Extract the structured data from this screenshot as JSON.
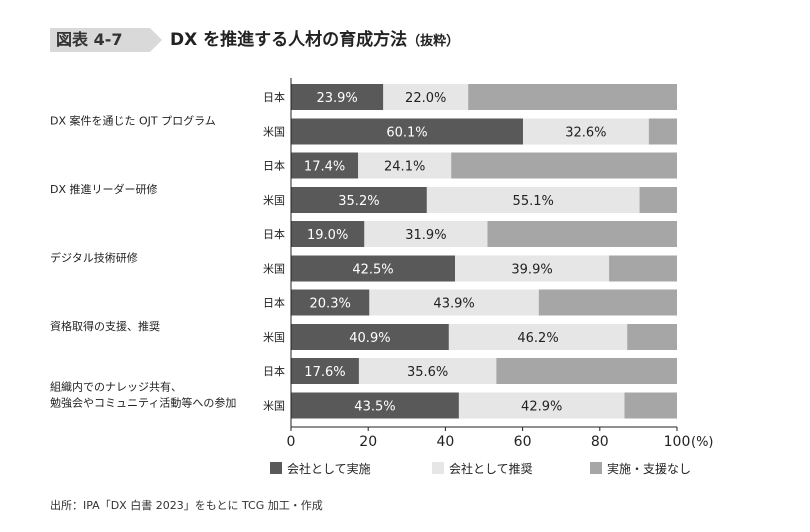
{
  "header": {
    "figure_label": "図表 4-7",
    "title": "DX を推進する人材の育成方法",
    "title_sub": "（抜粋）"
  },
  "chart_data": {
    "type": "bar",
    "orientation": "horizontal",
    "stacked": true,
    "xlim": [
      0,
      100
    ],
    "xticks": [
      "0",
      "20",
      "40",
      "60",
      "80",
      "100"
    ],
    "x_unit": "(%)",
    "grid": false,
    "legend_position": "bottom",
    "categories": [
      "DX 案件を通じた OJT プログラム",
      "DX 推進リーダー研修",
      "デジタル技術研修",
      "資格取得の支援、推奨",
      "組織内でのナレッジ共有、勉強会やコミュニティ活動等への参加"
    ],
    "category_lines": [
      [
        "DX 案件を通じた OJT プログラム"
      ],
      [
        "DX 推進リーダー研修"
      ],
      [
        "デジタル技術研修"
      ],
      [
        "資格取得の支援、推奨"
      ],
      [
        "組織内でのナレッジ共有、",
        "勉強会やコミュニティ活動等への参加"
      ]
    ],
    "groups": [
      "日本",
      "米国"
    ],
    "series": [
      {
        "name": "会社として実施",
        "color": "#595959",
        "values": [
          [
            23.9,
            60.1
          ],
          [
            17.4,
            35.2
          ],
          [
            19.0,
            42.5
          ],
          [
            20.3,
            40.9
          ],
          [
            17.6,
            43.5
          ]
        ],
        "labels": [
          [
            "23.9%",
            "60.1%"
          ],
          [
            "17.4%",
            "35.2%"
          ],
          [
            "19.0%",
            "42.5%"
          ],
          [
            "20.3%",
            "40.9%"
          ],
          [
            "17.6%",
            "43.5%"
          ]
        ]
      },
      {
        "name": "会社として推奨",
        "color": "#e6e6e6",
        "values": [
          [
            22.0,
            32.6
          ],
          [
            24.1,
            55.1
          ],
          [
            31.9,
            39.9
          ],
          [
            43.9,
            46.2
          ],
          [
            35.6,
            42.9
          ]
        ],
        "labels": [
          [
            "22.0%",
            "32.6%"
          ],
          [
            "24.1%",
            "55.1%"
          ],
          [
            "31.9%",
            "39.9%"
          ],
          [
            "43.9%",
            "46.2%"
          ],
          [
            "35.6%",
            "42.9%"
          ]
        ]
      },
      {
        "name": "実施・支援なし",
        "color": "#a6a6a6",
        "values": [
          [
            54.1,
            7.3
          ],
          [
            58.5,
            9.7
          ],
          [
            49.1,
            17.6
          ],
          [
            35.8,
            12.9
          ],
          [
            46.8,
            13.6
          ]
        ]
      }
    ]
  },
  "source": "出所：IPA「DX 白書 2023」をもとに TCG 加工・作成"
}
